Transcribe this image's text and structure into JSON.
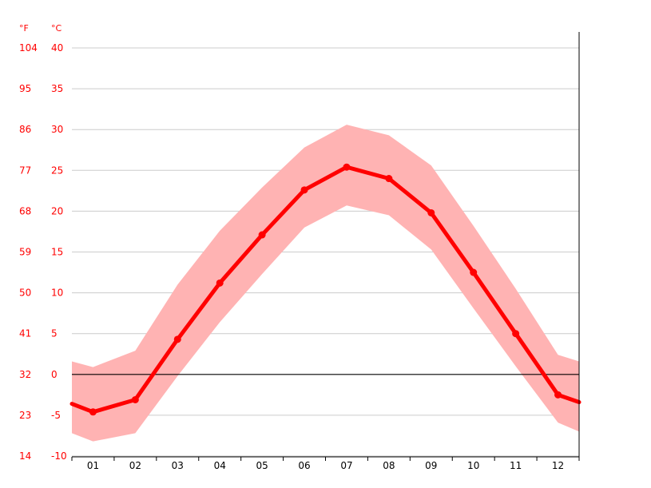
{
  "chart_data": {
    "type": "line",
    "title": "",
    "xlabel": "",
    "ylabel": "",
    "categories": [
      "01",
      "02",
      "03",
      "04",
      "05",
      "06",
      "07",
      "08",
      "09",
      "10",
      "11",
      "12"
    ],
    "unit_labels": {
      "left": "°F",
      "right": "°C"
    },
    "y_ticks_c": [
      40,
      35,
      30,
      25,
      20,
      15,
      10,
      5,
      0,
      -5,
      -10
    ],
    "y_ticks_f": [
      "104",
      "95",
      "86",
      "77",
      "68",
      "59",
      "50",
      "41",
      "32",
      "23",
      "14"
    ],
    "ylim": [
      -10,
      41
    ],
    "series": [
      {
        "values": [
          -4.6,
          -3.1,
          4.3,
          11.2,
          17.1,
          22.6,
          25.4,
          24.0,
          19.8,
          12.5,
          5.0,
          -2.5
        ]
      }
    ],
    "band": {
      "upper": [
        0.9,
        2.9,
        11.0,
        17.6,
        22.9,
        27.8,
        30.6,
        29.3,
        25.6,
        18.2,
        10.5,
        2.4
      ],
      "lower": [
        -8.2,
        -7.2,
        -0.2,
        6.4,
        12.3,
        18.0,
        20.7,
        19.5,
        15.3,
        8.1,
        1.0,
        -5.9
      ]
    },
    "edge_values": {
      "left": [
        1.6,
        -3.6,
        -7.2
      ],
      "right": [
        1.6,
        -3.4,
        -7.0
      ]
    },
    "grid": true,
    "colors": {
      "line": "#ff0000",
      "band": "#ffb3b3",
      "grid": "#cccccc",
      "zero_line": "#000000",
      "axis": "#000000",
      "tick_text": "#ff0000"
    }
  }
}
